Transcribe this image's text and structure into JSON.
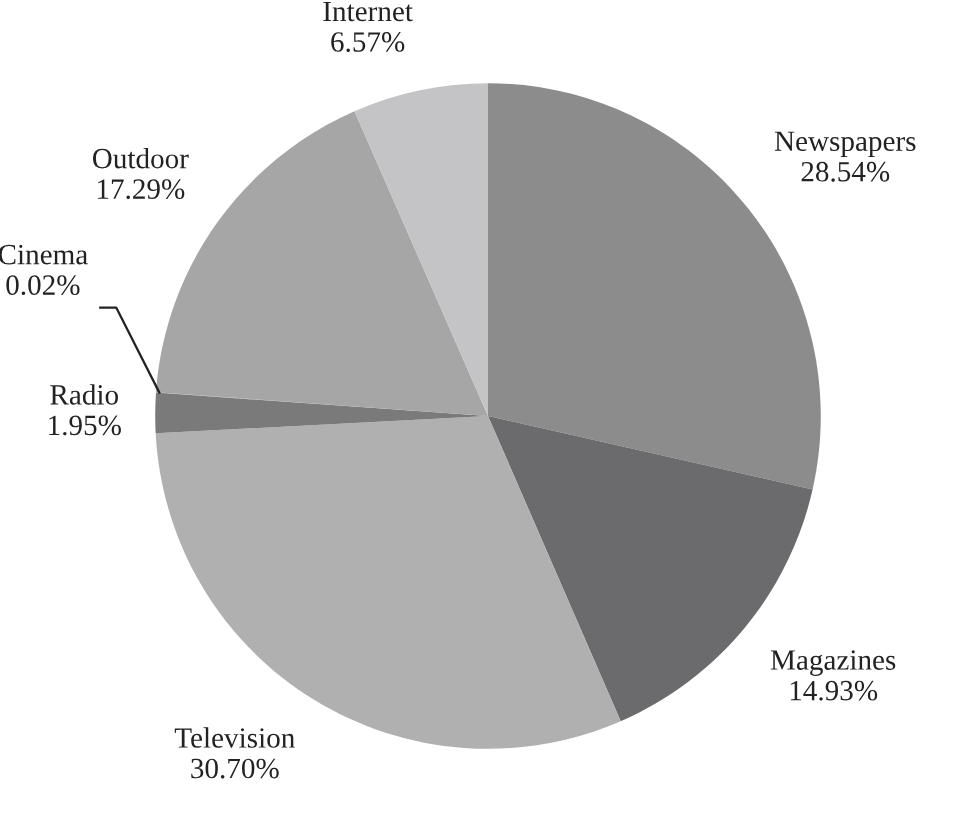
{
  "chart_data": {
    "type": "pie",
    "categories": [
      "Newspapers",
      "Magazines",
      "Television",
      "Radio",
      "Cinema",
      "Outdoor",
      "Internet"
    ],
    "values": [
      28.54,
      14.93,
      30.7,
      1.95,
      0.02,
      17.29,
      6.57
    ],
    "value_labels": [
      "28.54%",
      "14.93%",
      "30.70%",
      "1.95%",
      "0.02%",
      "17.29%",
      "6.57%"
    ],
    "colors": [
      "#8c8c8c",
      "#6b6b6d",
      "#b0b0b0",
      "#7a7a7a",
      "#999999",
      "#a6a6a6",
      "#c4c4c6"
    ],
    "legend": false
  }
}
